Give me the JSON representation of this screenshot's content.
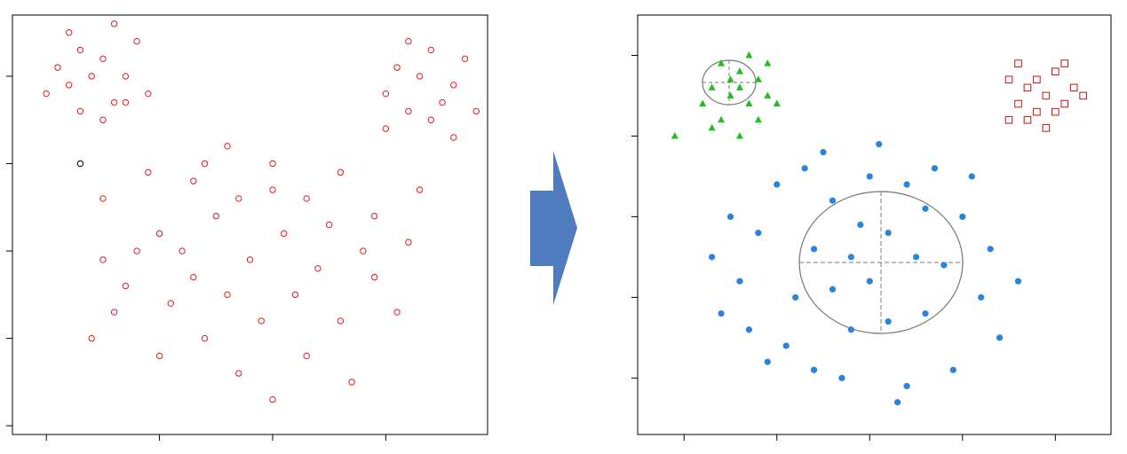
{
  "chart_data": [
    {
      "type": "scatter",
      "xlim": [
        -0.3,
        3.9
      ],
      "ylim": [
        -0.1,
        4.7
      ],
      "x_ticks": [
        0,
        1,
        2,
        3,
        4
      ],
      "y_ticks": [
        0,
        1,
        2,
        3,
        4
      ],
      "grid": false,
      "legend": "none",
      "series": [
        {
          "marker": "open-circle",
          "color": "#e41a1c",
          "points": [
            [
              0.0,
              3.8
            ],
            [
              0.1,
              4.1
            ],
            [
              0.2,
              3.9
            ],
            [
              0.3,
              4.3
            ],
            [
              0.4,
              4.0
            ],
            [
              0.5,
              4.2
            ],
            [
              0.6,
              3.7
            ],
            [
              0.7,
              4.0
            ],
            [
              0.8,
              4.4
            ],
            [
              0.9,
              3.8
            ],
            [
              0.3,
              3.6
            ],
            [
              0.5,
              3.5
            ],
            [
              0.7,
              3.7
            ],
            [
              0.2,
              4.5
            ],
            [
              0.6,
              4.6
            ],
            [
              3.0,
              3.8
            ],
            [
              3.1,
              4.1
            ],
            [
              3.2,
              3.6
            ],
            [
              3.3,
              4.0
            ],
            [
              3.4,
              4.3
            ],
            [
              3.5,
              3.7
            ],
            [
              3.6,
              3.9
            ],
            [
              3.7,
              4.2
            ],
            [
              3.8,
              3.6
            ],
            [
              3.2,
              4.4
            ],
            [
              3.0,
              3.4
            ],
            [
              3.4,
              3.5
            ],
            [
              3.6,
              3.3
            ],
            [
              0.4,
              1.0
            ],
            [
              0.7,
              1.6
            ],
            [
              1.0,
              2.2
            ],
            [
              1.3,
              2.8
            ],
            [
              1.6,
              3.2
            ],
            [
              2.0,
              3.0
            ],
            [
              2.3,
              2.6
            ],
            [
              2.6,
              2.9
            ],
            [
              2.9,
              2.4
            ],
            [
              3.2,
              2.1
            ],
            [
              0.5,
              2.6
            ],
            [
              0.8,
              2.0
            ],
            [
              1.1,
              1.4
            ],
            [
              1.4,
              1.0
            ],
            [
              1.7,
              0.6
            ],
            [
              2.0,
              0.3
            ],
            [
              2.3,
              0.8
            ],
            [
              2.6,
              1.2
            ],
            [
              2.9,
              1.7
            ],
            [
              3.1,
              1.3
            ],
            [
              1.2,
              2.0
            ],
            [
              1.5,
              2.4
            ],
            [
              1.8,
              1.9
            ],
            [
              2.1,
              2.2
            ],
            [
              2.4,
              1.8
            ],
            [
              1.6,
              1.5
            ],
            [
              1.9,
              1.2
            ],
            [
              2.2,
              1.5
            ],
            [
              2.5,
              2.3
            ],
            [
              1.3,
              1.7
            ],
            [
              0.6,
              1.3
            ],
            [
              0.9,
              2.9
            ],
            [
              2.7,
              0.5
            ],
            [
              3.3,
              2.7
            ],
            [
              1.0,
              0.8
            ],
            [
              2.0,
              2.7
            ],
            [
              1.7,
              2.6
            ],
            [
              2.8,
              2.0
            ],
            [
              0.5,
              1.9
            ],
            [
              1.4,
              3.0
            ]
          ]
        },
        {
          "marker": "open-circle",
          "color": "#000000",
          "points": [
            [
              0.3,
              3.0
            ]
          ]
        }
      ]
    },
    {
      "type": "scatter",
      "xlim": [
        -0.5,
        4.6
      ],
      "ylim": [
        -0.7,
        4.5
      ],
      "x_ticks": [
        0,
        1,
        2,
        3,
        4
      ],
      "y_ticks": [
        0,
        1,
        2,
        3,
        4
      ],
      "grid": false,
      "legend": "none",
      "series": [
        {
          "marker": "filled-triangle",
          "color": "#1fbf1f",
          "points": [
            [
              0.3,
              3.6
            ],
            [
              0.4,
              3.9
            ],
            [
              0.5,
              3.5
            ],
            [
              0.6,
              3.8
            ],
            [
              0.7,
              3.4
            ],
            [
              0.8,
              3.7
            ],
            [
              0.9,
              3.5
            ],
            [
              0.4,
              3.2
            ],
            [
              0.6,
              3.0
            ],
            [
              0.8,
              3.2
            ],
            [
              0.2,
              3.4
            ],
            [
              0.7,
              4.0
            ],
            [
              0.5,
              3.7
            ],
            [
              0.9,
              3.9
            ],
            [
              1.0,
              3.4
            ],
            [
              0.3,
              3.1
            ],
            [
              -0.1,
              3.0
            ],
            [
              0.6,
              3.6
            ]
          ]
        },
        {
          "marker": "open-square",
          "color": "#c01414",
          "points": [
            [
              3.5,
              3.7
            ],
            [
              3.6,
              3.4
            ],
            [
              3.7,
              3.6
            ],
            [
              3.8,
              3.3
            ],
            [
              3.9,
              3.5
            ],
            [
              4.0,
              3.8
            ],
            [
              4.1,
              3.4
            ],
            [
              4.2,
              3.6
            ],
            [
              3.6,
              3.9
            ],
            [
              3.9,
              3.1
            ],
            [
              3.7,
              3.2
            ],
            [
              4.0,
              3.3
            ],
            [
              3.8,
              3.7
            ],
            [
              4.1,
              3.9
            ],
            [
              3.5,
              3.2
            ],
            [
              4.3,
              3.5
            ]
          ]
        },
        {
          "marker": "filled-circle",
          "color": "#2984e0",
          "points": [
            [
              0.6,
              1.2
            ],
            [
              0.8,
              1.8
            ],
            [
              1.0,
              2.4
            ],
            [
              1.2,
              1.0
            ],
            [
              1.4,
              1.6
            ],
            [
              1.6,
              2.2
            ],
            [
              1.8,
              0.6
            ],
            [
              2.0,
              1.2
            ],
            [
              2.2,
              1.8
            ],
            [
              2.4,
              2.4
            ],
            [
              2.6,
              0.8
            ],
            [
              2.8,
              1.4
            ],
            [
              3.0,
              2.0
            ],
            [
              3.2,
              1.0
            ],
            [
              1.1,
              0.4
            ],
            [
              1.5,
              2.8
            ],
            [
              2.1,
              2.9
            ],
            [
              2.7,
              2.6
            ],
            [
              3.3,
              1.6
            ],
            [
              0.4,
              0.8
            ],
            [
              0.9,
              0.2
            ],
            [
              1.7,
              0.0
            ],
            [
              2.3,
              -0.3
            ],
            [
              2.9,
              0.1
            ],
            [
              3.4,
              0.5
            ],
            [
              0.5,
              2.0
            ],
            [
              1.3,
              2.6
            ],
            [
              1.9,
              1.9
            ],
            [
              2.5,
              1.5
            ],
            [
              1.6,
              1.1
            ],
            [
              2.2,
              0.7
            ],
            [
              0.7,
              0.6
            ],
            [
              3.1,
              2.5
            ],
            [
              2.0,
              2.5
            ],
            [
              1.4,
              0.1
            ],
            [
              2.6,
              2.1
            ],
            [
              1.8,
              1.5
            ],
            [
              0.3,
              1.5
            ],
            [
              3.6,
              1.2
            ],
            [
              2.4,
              -0.1
            ]
          ]
        }
      ]
    }
  ],
  "arrow": {
    "color": "#4f7cbf"
  }
}
